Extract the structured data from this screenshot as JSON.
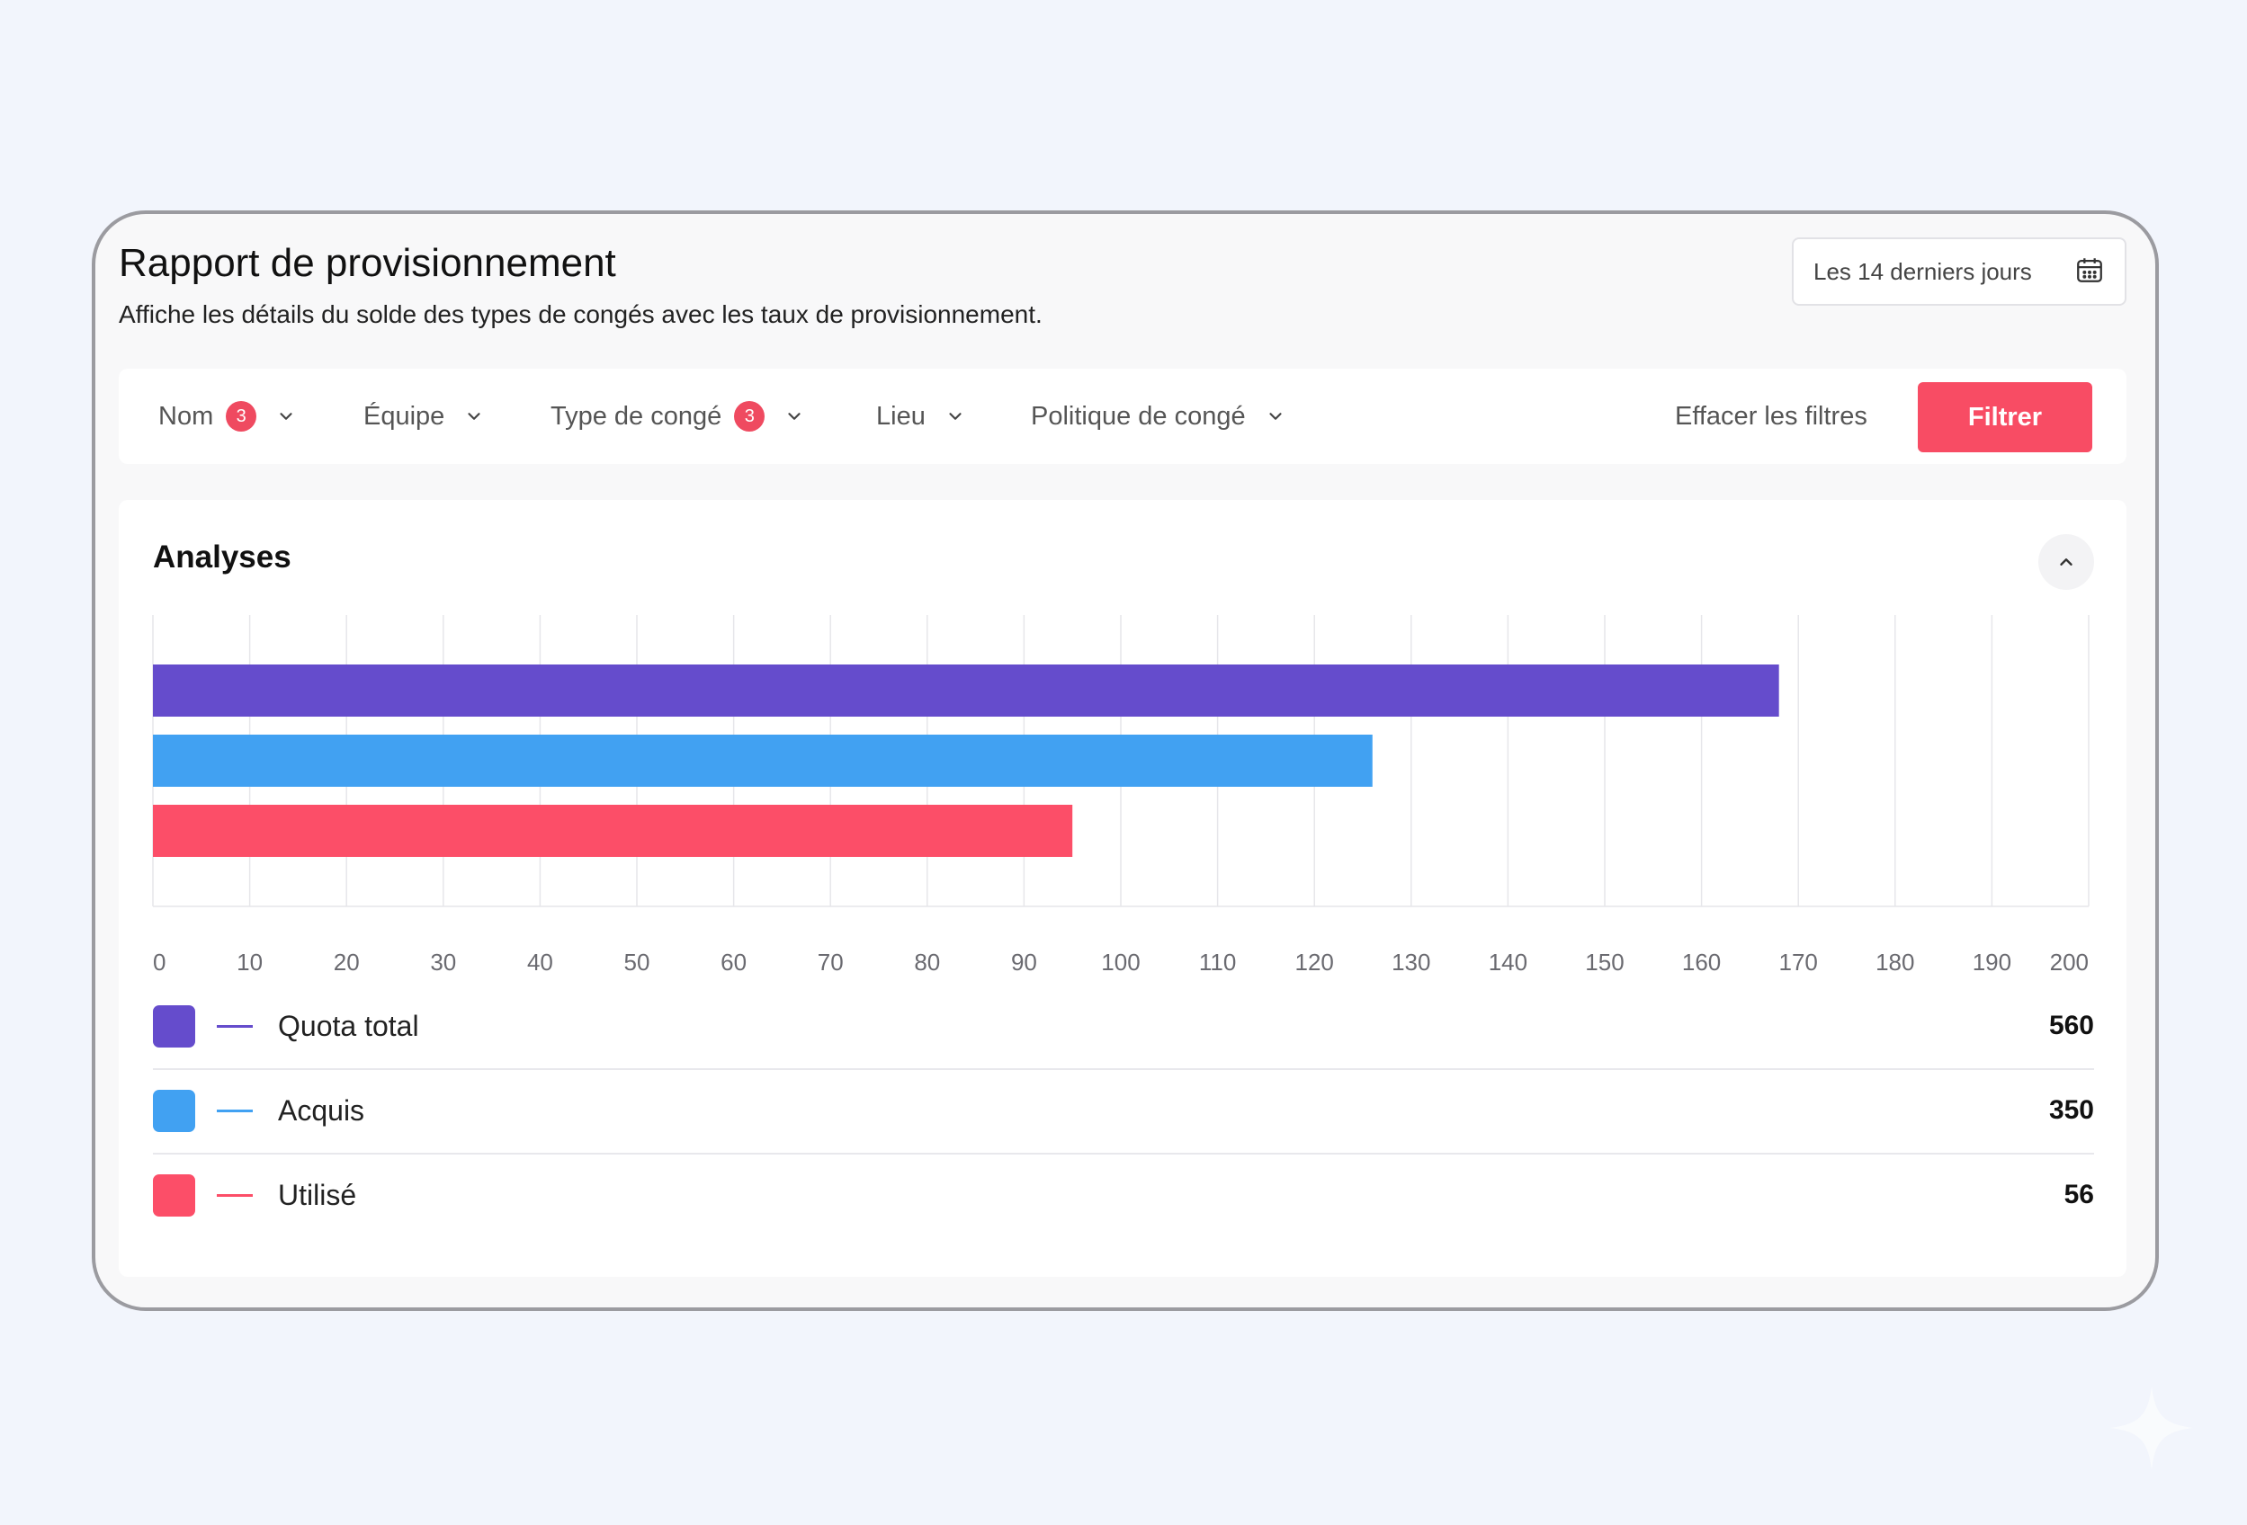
{
  "report": {
    "title": "Rapport de provisionnement",
    "subtitle": "Affiche les détails du solde des types de congés avec les taux de provisionnement."
  },
  "date_range": {
    "label": "Les 14 derniers jours",
    "icon": "calendar-icon"
  },
  "filters": [
    {
      "label": "Nom",
      "badge": "3"
    },
    {
      "label": "Équipe",
      "badge": null
    },
    {
      "label": "Type de congé",
      "badge": "3"
    },
    {
      "label": "Lieu",
      "badge": null
    },
    {
      "label": "Politique de congé",
      "badge": null
    }
  ],
  "actions": {
    "clear_label": "Effacer les filtres",
    "filter_label": "Filtrer"
  },
  "analytics": {
    "title": "Analyses",
    "collapse_icon": "chevron-up-icon"
  },
  "colors": {
    "accent": "#f84c64",
    "badge": "#ef4a60",
    "quota": "#654ccc",
    "acquis": "#41a1f2",
    "utilise": "#fc4e68"
  },
  "chart_data": {
    "type": "bar",
    "orientation": "horizontal",
    "xlim": [
      0,
      200
    ],
    "xticks": [
      0,
      10,
      20,
      30,
      40,
      50,
      60,
      70,
      80,
      90,
      100,
      110,
      120,
      130,
      140,
      150,
      160,
      170,
      180,
      190,
      200
    ],
    "grid": true,
    "series": [
      {
        "name": "Quota total",
        "value": 168,
        "color": "#654ccc",
        "legend_value": "560"
      },
      {
        "name": "Acquis",
        "value": 126,
        "color": "#41a1f2",
        "legend_value": "350"
      },
      {
        "name": "Utilisé",
        "value": 95,
        "color": "#fc4e68",
        "legend_value": "56"
      }
    ]
  }
}
